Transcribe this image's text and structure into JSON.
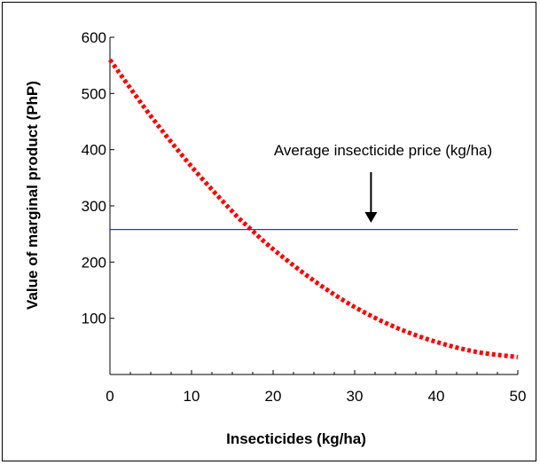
{
  "chart_data": {
    "type": "line",
    "title": "",
    "xlabel": "Insecticides (kg/ha)",
    "ylabel": "Value of marginal product (PhP)",
    "xlim": [
      0,
      50
    ],
    "ylim": [
      0,
      600
    ],
    "x_ticks": [
      0,
      10,
      20,
      30,
      40,
      50
    ],
    "y_ticks": [
      100,
      200,
      300,
      400,
      500,
      600
    ],
    "grid": false,
    "series": [
      {
        "color": "#ff0000",
        "style": "dotted",
        "x": [
          0,
          5,
          10,
          15,
          17,
          20,
          25,
          30,
          35,
          40,
          45,
          50
        ],
        "y": [
          560,
          460,
          370,
          290,
          262,
          223,
          167,
          120,
          84,
          58,
          40,
          31
        ]
      },
      {
        "color": "#3333cc",
        "style": "solid",
        "x": [
          0,
          50
        ],
        "y": [
          258,
          258
        ]
      }
    ],
    "annotations": [
      {
        "text": "Average insecticide price (kg/ha)",
        "arrow_x": 32,
        "arrow_y_from": 360,
        "arrow_y_to": 270
      }
    ]
  }
}
